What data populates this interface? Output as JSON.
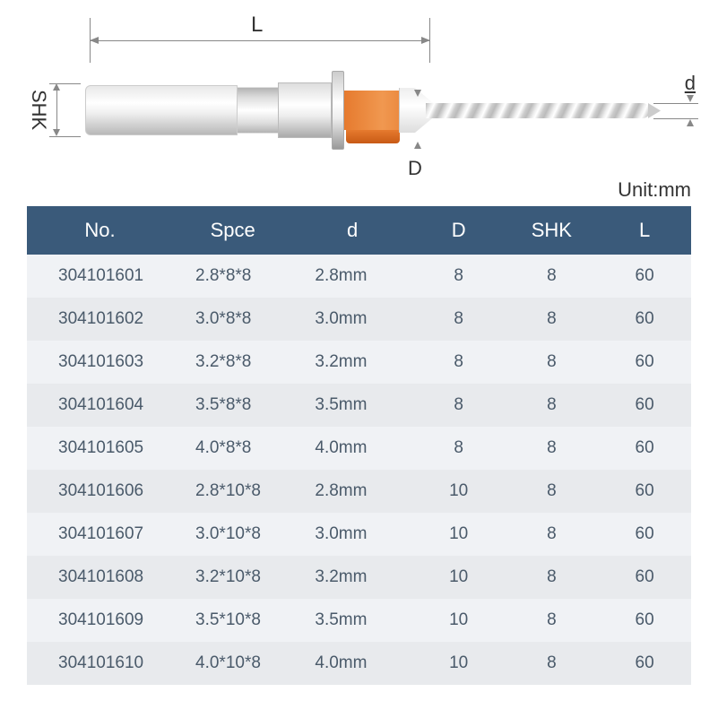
{
  "diagram": {
    "dimension_labels": {
      "L": "L",
      "SHK": "SHK",
      "D": "D",
      "d": "d"
    },
    "unit_label": "Unit:mm",
    "line_color": "#888888",
    "label_color": "#333333",
    "label_fontsize": 22,
    "shank_gradient": [
      "#e8e8e8",
      "#ffffff",
      "#f0f0f0",
      "#b8b8b8"
    ],
    "orange_color": "#e67a2e",
    "drill_gradient": [
      "#bbbbbb",
      "#eeeeee",
      "#ffffff",
      "#cccccc"
    ],
    "background_color": "#ffffff"
  },
  "table": {
    "columns": [
      "No.",
      "Spce",
      "d",
      "D",
      "SHK",
      "L"
    ],
    "rows": [
      [
        "304101601",
        "2.8*8*8",
        "2.8mm",
        "8",
        "8",
        "60"
      ],
      [
        "304101602",
        "3.0*8*8",
        "3.0mm",
        "8",
        "8",
        "60"
      ],
      [
        "304101603",
        "3.2*8*8",
        "3.2mm",
        "8",
        "8",
        "60"
      ],
      [
        "304101604",
        "3.5*8*8",
        "3.5mm",
        "8",
        "8",
        "60"
      ],
      [
        "304101605",
        "4.0*8*8",
        "4.0mm",
        "8",
        "8",
        "60"
      ],
      [
        "304101606",
        "2.8*10*8",
        "2.8mm",
        "10",
        "8",
        "60"
      ],
      [
        "304101607",
        "3.0*10*8",
        "3.0mm",
        "10",
        "8",
        "60"
      ],
      [
        "304101608",
        "3.2*10*8",
        "3.2mm",
        "10",
        "8",
        "60"
      ],
      [
        "304101609",
        "3.5*10*8",
        "3.5mm",
        "10",
        "8",
        "60"
      ],
      [
        "304101610",
        "4.0*10*8",
        "4.0mm",
        "10",
        "8",
        "60"
      ]
    ],
    "header_bg": "#3a5a7a",
    "header_fg": "#ffffff",
    "header_fontsize": 22,
    "row_bg_odd": "#f0f2f5",
    "row_bg_even": "#e8eaed",
    "cell_color": "#4a5a6a",
    "cell_fontsize": 19,
    "col_widths": [
      "22%",
      "18%",
      "18%",
      "14%",
      "14%",
      "14%"
    ],
    "col_align": [
      "left",
      "left",
      "left",
      "center",
      "center",
      "center"
    ]
  }
}
